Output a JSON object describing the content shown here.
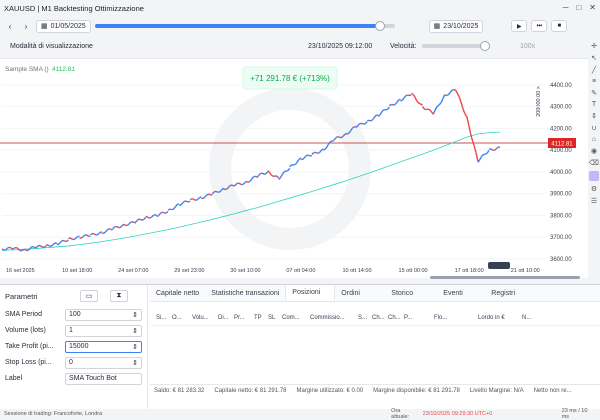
{
  "window": {
    "title": "XAUUSD | M1 Backtesting Ottimizzazione",
    "minimize": "─",
    "maximize": "□",
    "close": "✕"
  },
  "toolbar": {
    "start_date": "01/05/2025",
    "end_date": "23/10/2025",
    "play": "▶",
    "step": "⏭"
  },
  "row2": {
    "mode_label": "Modalità di visualizzazione",
    "current_time": "23/10/2025 09:12:00",
    "speed_label": "Velocità:",
    "speed_value": "100x"
  },
  "chart": {
    "strategy_label": "Sample SMA ()",
    "strategy_value": "4112.81",
    "pnl_badge": "+71 291.78 € (+713%)",
    "y_ticks": [
      "4400.00",
      "4300.00",
      "4200.00",
      "4100.00",
      "4000.00",
      "3900.00",
      "3800.00",
      "3700.00",
      "3600.00"
    ],
    "x_ticks": [
      "16 set 2025",
      "10 set 18:00",
      "24 set 07:00",
      "29 set 23:00",
      "30 set 10:00",
      "07 ott 04:00",
      "10 ott 14:00",
      "15 ott 00:00",
      "17 ott 18:00",
      "21 ott 10:00"
    ],
    "price_line_label": "4112.81",
    "vertical_scale_label": "200000.00 ×",
    "colors": {
      "up": "#3b82f6",
      "down": "#ef4444",
      "sma": "#2dd4bf",
      "hline": "#b91c1c"
    }
  },
  "chart_data": {
    "type": "line",
    "title": "",
    "series": [
      {
        "name": "Price",
        "values": [
          3645,
          3650,
          3640,
          3655,
          3660,
          3670,
          3690,
          3700,
          3710,
          3720,
          3740,
          3755,
          3770,
          3790,
          3800,
          3820,
          3850,
          3870,
          3880,
          3900,
          3920,
          3940,
          3950,
          3980,
          4000,
          3970,
          4020,
          4060,
          4080,
          4100,
          4150,
          4170,
          4210,
          4230,
          4260,
          4300,
          4330,
          4360,
          4300,
          4270,
          4350,
          4380,
          4250,
          4050,
          4100,
          4110
        ]
      },
      {
        "name": "SMA",
        "values": [
          3640,
          3642,
          3645,
          3648,
          3652,
          3656,
          3660,
          3666,
          3672,
          3680,
          3688,
          3696,
          3705,
          3715,
          3725,
          3735,
          3746,
          3758,
          3770,
          3782,
          3795,
          3808,
          3822,
          3835,
          3850,
          3865,
          3880,
          3895,
          3910,
          3926,
          3942,
          3958,
          3975,
          3992,
          4010,
          4028,
          4046,
          4064,
          4082,
          4100,
          4120,
          4140,
          4160,
          4175,
          4180,
          4183
        ]
      }
    ],
    "ylim": [
      3600,
      4450
    ]
  },
  "params": {
    "title": "Parametri",
    "rows": [
      {
        "label": "SMA Period",
        "value": "100"
      },
      {
        "label": "Volume (lots)",
        "value": "1"
      },
      {
        "label": "Take Profit (pi...",
        "value": "15000"
      },
      {
        "label": "Stop Loss (pi...",
        "value": "0"
      },
      {
        "label": "Label",
        "value": "SMA Touch Bot"
      }
    ]
  },
  "tabs": [
    "Capitale netto",
    "Statistiche transazioni",
    "Posizioni",
    "Ordini",
    "Storico",
    "Eventi",
    "Registri"
  ],
  "columns": [
    "Si...",
    "O...",
    "Volu...",
    "Di...",
    "Pr...",
    "TP",
    "SL",
    "Com...",
    "Commissio...",
    "S...",
    "Ch...",
    "Ch...",
    "P...",
    "Flo...",
    "Lordo in €",
    "N..."
  ],
  "summary": [
    "Saldo: € 81 283.32",
    "Capitale netto: € 81 291.78",
    "Margine utilizzato: € 0.00",
    "Margine disponibile: € 81 291.78",
    "Livello Margine: N/A",
    "Netto non re..."
  ],
  "status": {
    "left": "Sessione di trading: Francoforte, Londra",
    "date_label": "Ora attuale:",
    "date_value": "23/10/2025 09:29:30  UTC+0",
    "right": "23 ms / 10 ms"
  }
}
